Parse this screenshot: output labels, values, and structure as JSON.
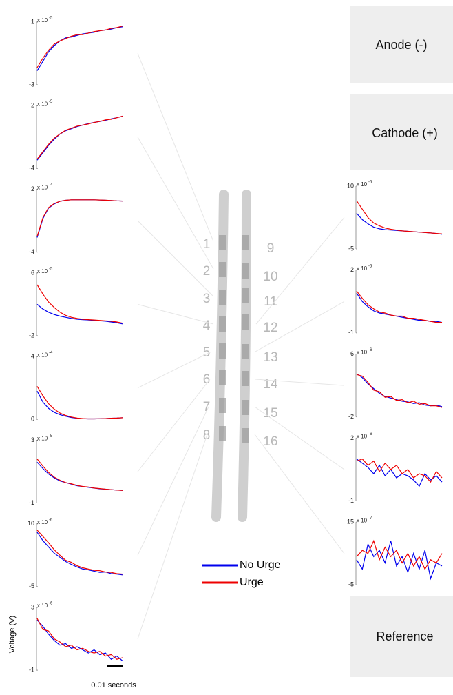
{
  "figure": {
    "y_label": "Voltage (V)",
    "scale_bar_label": "0.01 seconds",
    "legend": [
      {
        "name": "No Urge",
        "color": "#0000ee"
      },
      {
        "name": "Urge",
        "color": "#ee0000"
      }
    ]
  },
  "boxes": {
    "anode": "Anode (-)",
    "cathode": "Cathode (+)",
    "reference": "Reference"
  },
  "electrodes": [
    "1",
    "2",
    "3",
    "4",
    "5",
    "6",
    "7",
    "8",
    "9",
    "10",
    "11",
    "12",
    "13",
    "14",
    "15",
    "16"
  ],
  "chart_data": [
    {
      "type": "line",
      "ylim": [
        -3,
        1
      ],
      "yticks": [
        -3,
        1
      ],
      "y_multiplier": "x 10",
      "y_exponent": "-5",
      "series": [
        {
          "values": [
            -2.1,
            -1.5,
            -0.9,
            -0.5,
            -0.2,
            0,
            0.05,
            0.15,
            0.25,
            0.3,
            0.35,
            0.45,
            0.5,
            0.55,
            0.65,
            0.7
          ]
        },
        {
          "values": [
            -1.9,
            -1.3,
            -0.8,
            -0.4,
            -0.2,
            -0.05,
            0.1,
            0.2,
            0.2,
            0.3,
            0.4,
            0.45,
            0.5,
            0.6,
            0.65,
            0.75
          ]
        }
      ]
    },
    {
      "type": "line",
      "ylim": [
        -4,
        2
      ],
      "yticks": [
        -4,
        2
      ],
      "y_multiplier": "x 10",
      "y_exponent": "-5",
      "series": [
        {
          "values": [
            -3.2,
            -2.5,
            -1.8,
            -1.2,
            -0.7,
            -0.4,
            -0.2,
            0,
            0.15,
            0.3,
            0.4,
            0.5,
            0.6,
            0.75,
            0.85,
            1.0
          ]
        },
        {
          "values": [
            -3.1,
            -2.4,
            -1.7,
            -1.1,
            -0.7,
            -0.35,
            -0.15,
            0.05,
            0.15,
            0.25,
            0.4,
            0.5,
            0.65,
            0.7,
            0.85,
            1.0
          ]
        }
      ]
    },
    {
      "type": "line",
      "ylim": [
        -4,
        2
      ],
      "yticks": [
        -4,
        2
      ],
      "y_multiplier": "x 10",
      "y_exponent": "-4",
      "series": [
        {
          "values": [
            -2.6,
            -0.8,
            0.2,
            0.6,
            0.85,
            0.95,
            1.0,
            1.0,
            1.0,
            1.0,
            1.0,
            0.98,
            0.95,
            0.93,
            0.9,
            0.88
          ]
        },
        {
          "values": [
            -2.5,
            -0.7,
            0.25,
            0.65,
            0.85,
            0.95,
            1.0,
            1.0,
            1.0,
            1.0,
            1.0,
            0.98,
            0.96,
            0.93,
            0.9,
            0.88
          ]
        }
      ]
    },
    {
      "type": "line",
      "ylim": [
        -2,
        6
      ],
      "yticks": [
        -2,
        6
      ],
      "y_multiplier": "x 10",
      "y_exponent": "-5",
      "series": [
        {
          "values": [
            2.0,
            1.4,
            1.0,
            0.7,
            0.5,
            0.35,
            0.2,
            0.1,
            0.05,
            0,
            -0.05,
            -0.1,
            -0.15,
            -0.25,
            -0.35,
            -0.5
          ]
        },
        {
          "values": [
            4.5,
            3.3,
            2.3,
            1.6,
            1.0,
            0.6,
            0.35,
            0.2,
            0.1,
            0.05,
            0,
            -0.05,
            -0.1,
            -0.15,
            -0.25,
            -0.4
          ]
        }
      ]
    },
    {
      "type": "line",
      "ylim": [
        0,
        4
      ],
      "yticks": [
        0,
        4
      ],
      "y_multiplier": "x 10",
      "y_exponent": "-4",
      "series": [
        {
          "values": [
            1.8,
            1.1,
            0.7,
            0.45,
            0.3,
            0.2,
            0.12,
            0.07,
            0.04,
            0.03,
            0.03,
            0.04,
            0.05,
            0.07,
            0.08,
            0.1
          ]
        },
        {
          "values": [
            2.1,
            1.5,
            1.0,
            0.65,
            0.4,
            0.25,
            0.15,
            0.08,
            0.05,
            0.03,
            0.03,
            0.04,
            0.05,
            0.07,
            0.08,
            0.1
          ]
        }
      ]
    },
    {
      "type": "line",
      "ylim": [
        -1,
        3
      ],
      "yticks": [
        -1,
        3
      ],
      "y_multiplier": "x 10",
      "y_exponent": "-5",
      "series": [
        {
          "values": [
            1.6,
            1.2,
            0.85,
            0.6,
            0.4,
            0.3,
            0.2,
            0.1,
            0.05,
            0,
            -0.05,
            -0.1,
            -0.12,
            -0.15,
            -0.18,
            -0.2
          ]
        },
        {
          "values": [
            1.8,
            1.35,
            0.95,
            0.65,
            0.45,
            0.3,
            0.22,
            0.12,
            0.05,
            0.02,
            -0.05,
            -0.08,
            -0.12,
            -0.15,
            -0.18,
            -0.2
          ]
        }
      ]
    },
    {
      "type": "line",
      "ylim": [
        -5,
        10
      ],
      "yticks": [
        -5,
        10
      ],
      "y_multiplier": "x 10",
      "y_exponent": "-6",
      "series": [
        {
          "values": [
            8,
            6,
            4.5,
            3,
            2,
            1,
            0.3,
            -0.3,
            -0.8,
            -1,
            -1.3,
            -1.6,
            -1.5,
            -1.9,
            -2,
            -2.2
          ]
        },
        {
          "values": [
            8.5,
            7,
            5.5,
            3.8,
            2.5,
            1.3,
            0.8,
            0,
            -0.5,
            -0.8,
            -1.1,
            -1.2,
            -1.5,
            -1.6,
            -1.9,
            -2
          ]
        }
      ]
    },
    {
      "type": "line",
      "ylim": [
        -1,
        3
      ],
      "yticks": [
        -1,
        3
      ],
      "y_multiplier": "x 10",
      "y_exponent": "-6",
      "series": [
        {
          "values": [
            2.2,
            1.8,
            1.3,
            0.9,
            0.6,
            0.7,
            0.4,
            0.5,
            0.3,
            0.1,
            0.3,
            0,
            0.1,
            -0.3,
            -0.1,
            -0.4
          ]
        },
        {
          "values": [
            2.3,
            1.6,
            1.5,
            1.0,
            0.8,
            0.5,
            0.6,
            0.3,
            0.4,
            0.2,
            0.1,
            0.2,
            -0.1,
            0,
            -0.3,
            -0.2
          ]
        }
      ]
    },
    {
      "type": "line",
      "ylim": [
        -5,
        10
      ],
      "yticks": [
        -5,
        10
      ],
      "y_multiplier": "x 10",
      "y_exponent": "-5",
      "series": [
        {
          "values": [
            3.5,
            2,
            1,
            0.2,
            -0.2,
            -0.4,
            -0.5,
            -0.6,
            -0.7,
            -0.8,
            -0.9,
            -1,
            -1.1,
            -1.2,
            -1.3,
            -1.5
          ]
        },
        {
          "values": [
            6.5,
            4.5,
            2.5,
            1.2,
            0.5,
            0,
            -0.3,
            -0.5,
            -0.7,
            -0.8,
            -0.9,
            -1,
            -1.1,
            -1.2,
            -1.3,
            -1.4
          ]
        }
      ]
    },
    {
      "type": "line",
      "ylim": [
        -1,
        2
      ],
      "yticks": [
        -1,
        2
      ],
      "y_multiplier": "x 10",
      "y_exponent": "-5",
      "series": [
        {
          "values": [
            0.9,
            0.5,
            0.25,
            0.05,
            -0.05,
            -0.1,
            -0.15,
            -0.2,
            -0.25,
            -0.3,
            -0.35,
            -0.4,
            -0.4,
            -0.45,
            -0.45,
            -0.5
          ]
        },
        {
          "values": [
            1.0,
            0.65,
            0.35,
            0.15,
            0,
            -0.05,
            -0.15,
            -0.2,
            -0.2,
            -0.3,
            -0.3,
            -0.35,
            -0.4,
            -0.45,
            -0.5,
            -0.5
          ]
        }
      ]
    },
    {
      "type": "line",
      "ylim": [
        -2,
        6
      ],
      "yticks": [
        -2,
        6
      ],
      "y_multiplier": "x 10",
      "y_exponent": "-6",
      "series": [
        {
          "values": [
            3.5,
            3,
            2.2,
            1.6,
            1,
            0.6,
            0.4,
            0.2,
            0,
            -0.1,
            -0.3,
            -0.2,
            -0.5,
            -0.6,
            -0.5,
            -0.7
          ]
        },
        {
          "values": [
            3.4,
            3.2,
            2.4,
            1.4,
            1.2,
            0.5,
            0.6,
            0.1,
            0.2,
            -0.2,
            0,
            -0.4,
            -0.3,
            -0.6,
            -0.6,
            -0.8
          ]
        }
      ]
    },
    {
      "type": "line",
      "ylim": [
        -1,
        2
      ],
      "yticks": [
        -1,
        2
      ],
      "y_multiplier": "x 10",
      "y_exponent": "-6",
      "series": [
        {
          "values": [
            1.0,
            0.8,
            0.6,
            0.3,
            0.7,
            0.2,
            0.5,
            0.1,
            0.3,
            0.2,
            0,
            -0.3,
            0.3,
            0,
            0.2,
            -0.1
          ]
        },
        {
          "values": [
            0.9,
            1.0,
            0.7,
            0.9,
            0.4,
            0.8,
            0.5,
            0.7,
            0.3,
            0.5,
            0.1,
            0.3,
            0.2,
            -0.1,
            0.4,
            0.1
          ]
        }
      ]
    },
    {
      "type": "line",
      "ylim": [
        -5,
        15
      ],
      "yticks": [
        -5,
        15
      ],
      "y_multiplier": "x 10",
      "y_exponent": "-7",
      "series": [
        {
          "values": [
            3,
            0,
            8,
            4,
            6,
            2,
            9,
            1,
            4,
            -1,
            5,
            0,
            6,
            -3,
            2,
            1
          ]
        },
        {
          "values": [
            4,
            6,
            5,
            9,
            3,
            7,
            4,
            6,
            2,
            5,
            1,
            4,
            0,
            3,
            2,
            5
          ]
        }
      ]
    }
  ]
}
